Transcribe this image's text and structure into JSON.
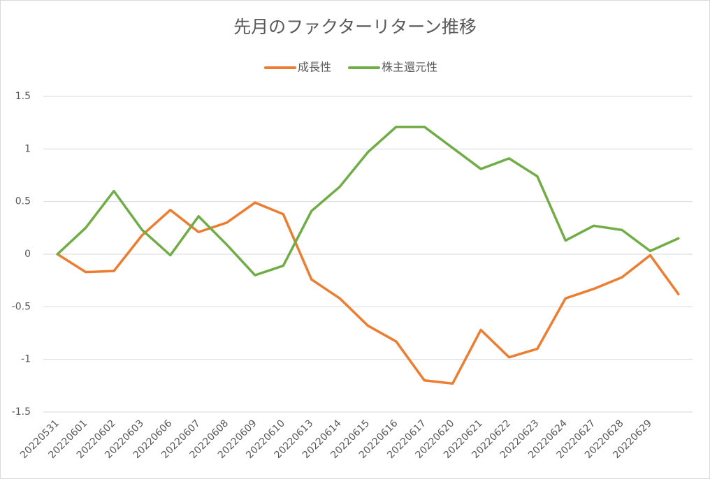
{
  "chart_data": {
    "type": "line",
    "title": "先月のファクターリターン推移",
    "categories": [
      "20220531",
      "20220601",
      "20220602",
      "20220603",
      "20220606",
      "20220607",
      "20220608",
      "20220609",
      "20220610",
      "20220613",
      "20220614",
      "20220615",
      "20220616",
      "20220617",
      "20220620",
      "20220621",
      "20220622",
      "20220623",
      "20220624",
      "20220627",
      "20220628",
      "20220629",
      null
    ],
    "series": [
      {
        "name": "成長性",
        "color": "#ed7d31",
        "values": [
          0,
          -0.17,
          -0.16,
          0.18,
          0.42,
          0.21,
          0.3,
          0.49,
          0.38,
          -0.24,
          -0.42,
          -0.68,
          -0.83,
          -1.2,
          -1.23,
          -0.72,
          -0.98,
          -0.9,
          -0.42,
          -0.33,
          -0.22,
          -0.01,
          -0.38
        ]
      },
      {
        "name": "株主還元性",
        "color": "#70ad47",
        "values": [
          0,
          0.25,
          0.6,
          0.23,
          -0.01,
          0.36,
          0.09,
          -0.2,
          -0.11,
          0.41,
          0.64,
          0.97,
          1.21,
          1.21,
          1.01,
          0.81,
          0.91,
          0.74,
          0.13,
          0.27,
          0.23,
          0.03,
          0.15
        ]
      }
    ],
    "ylim": [
      -1.5,
      1.5
    ],
    "yticks": [
      -1.5,
      -1,
      -0.5,
      0,
      0.5,
      1,
      1.5
    ],
    "grid": true,
    "legend": "top"
  }
}
